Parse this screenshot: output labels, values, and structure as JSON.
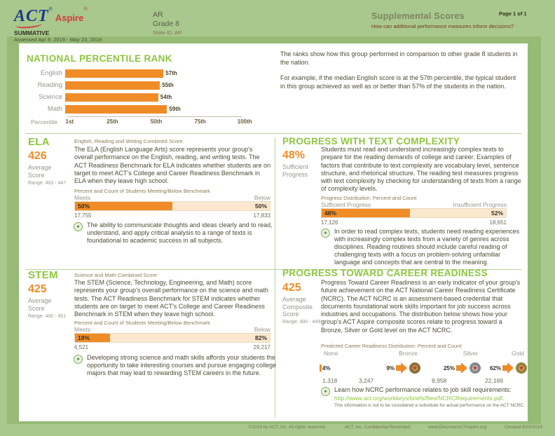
{
  "colors": {
    "background_green": "#a9c88d",
    "heading_green": "#8dc63f",
    "accent_orange": "#f08c28",
    "bar_below_fill": "#fce8ce",
    "link_green": "#8dc63f",
    "act_blue": "#1b3b8c",
    "aspire_red": "#d5373c",
    "medal_bronze": "#8c6f39",
    "medal_silver": "#84898e",
    "medal_gold": "#97823b"
  },
  "icons": {
    "insight": "✦",
    "medal_star": "★"
  },
  "header": {
    "logo_act": "ACT",
    "logo_act_mark": "®",
    "logo_aspire": "Aspire",
    "logo_aspire_mark": "®",
    "summative": "SUMMATIVE",
    "assessed": "Assessed Apr 8, 2019 - May 23, 2019",
    "region": "AR",
    "grade": "Grade 8",
    "state_id": "State ID: AR",
    "title": "Supplemental Scores",
    "subtitle": "How can additional performance measures inform decisions?",
    "page": "Page 1 of 1"
  },
  "national_percentile": {
    "title": "NATIONAL PERCENTILE RANK",
    "axis_label": "Percentile",
    "chart_data": {
      "type": "bar",
      "orientation": "horizontal",
      "title": "National Percentile Rank",
      "categories": [
        "English",
        "Reading",
        "Science",
        "Math"
      ],
      "values": [
        57,
        55,
        54,
        59
      ],
      "value_labels": [
        "57th",
        "55th",
        "54th",
        "59th"
      ],
      "x_ticks": [
        "1st",
        "25th",
        "50th",
        "75th",
        "100th"
      ],
      "x_tick_values": [
        1,
        25,
        50,
        75,
        100
      ],
      "xlim": [
        1,
        100
      ],
      "bar_color": "#f08c28",
      "grid": false,
      "legend": false
    },
    "para1": "The ranks show how this group performed in comparison to other grade 8 students in the nation.",
    "para2": "For example, if the median English score is at the 57th percentile, the typical student in this group achieved as well as or better than 57% of the students in the nation."
  },
  "ela": {
    "title": "ELA",
    "score": "426",
    "score_label": "Average Score",
    "range": "Range: 403 - 447",
    "combined_label": "English, Reading and Writing Combined Score",
    "body": "The ELA (English Language Arts) score represents your group's overall performance on the English, reading, and writing tests. The ACT Readiness Benchmark for ELA indicates whether students are on target to meet ACT's College and Career Readiness Benchmark in ELA when they leave high school.",
    "bar_title": "Percent and Count of Students Meeting/Below Benchmark",
    "left_label": "Meets",
    "right_label": "Below",
    "left_pct": 50,
    "right_pct": 50,
    "left_pct_label": "50%",
    "right_pct_label": "50%",
    "left_count": "17,755",
    "right_count": "17,833",
    "insight": "The ability to communicate thoughts and ideas clearly and to read, understand, and apply critical analysis to a range of texts is foundational to academic success in all subjects."
  },
  "text_complexity": {
    "title": "PROGRESS WITH TEXT COMPLEXITY",
    "score": "48%",
    "score_label": "Sufficient Progress",
    "body": "Students must read and understand increasingly complex texts to prepare for the reading demands of college and career. Examples of factors that contribute to text complexity are vocabulary level, sentence structure, and rhetorical structure. The reading test measures progress with text complexity by checking for understanding of texts from a range of complexity levels.",
    "bar_title": "Progress Distribution: Percent and Count",
    "left_label": "Sufficient Progress",
    "right_label": "Insufficient Progress",
    "left_pct": 48,
    "right_pct": 52,
    "left_pct_label": "48%",
    "right_pct_label": "52%",
    "left_count": "17,126",
    "right_count": "18,651",
    "insight": "In order to read complex texts, students need reading experiences with increasingly complex texts from a variety of genres across disciplines. Reading routines should include careful reading of challenging texts with a focus on problem-solving unfamiliar language and concepts that are central to the meaning."
  },
  "stem": {
    "title": "STEM",
    "score": "425",
    "score_label": "Average Score",
    "range": "Range: 400 - 451",
    "combined_label": "Science and Math Combined Score",
    "body": "The STEM (Science, Technology, Engineering, and Math) score represents your group's overall performance on the science and math tests. The ACT Readiness Benchmark for STEM indicates whether students are on target to meet ACT's College and Career Readiness Benchmark in STEM when they leave high school.",
    "bar_title": "Percent and Count of Students Meeting/Below Benchmark",
    "left_label": "Meets",
    "right_label": "Below",
    "left_pct": 18,
    "right_pct": 82,
    "left_pct_label": "18%",
    "right_pct_label": "82%",
    "left_count": "6,521",
    "right_count": "29,217",
    "insight": "Developing strong science and math skills affords your students the opportunity to take interesting courses and pursue engaging college majors that may lead to rewarding STEM careers in the future."
  },
  "career": {
    "title": "PROGRESS TOWARD CAREER READINESS",
    "score": "425",
    "score_label": "Average Composite Score",
    "range": "Range: 400 - 449",
    "body": "Progress Toward Career Readiness is an early indicator of your group's future achievement on the ACT National Career Readiness Certificate (NCRC). The ACT NCRC is an assessment-based credential that documents foundational work skills important for job success across industries and occupations. The distribution below shows how your group's ACT Aspire composite scores relate to progress toward a Bronze, Silver or Gold level on the ACT NCRC.",
    "dist_title": "Predicted Career Readiness Distribution: Percent and Count",
    "levels": [
      {
        "label": "None",
        "pct": "4%",
        "count": "1,318",
        "medal": "none"
      },
      {
        "label": "Bronze",
        "pct": "9%",
        "count": "3,247",
        "medal": "bronze"
      },
      {
        "label": "Silver",
        "pct": "25%",
        "count": "8,958",
        "medal": "silver"
      },
      {
        "label": "Gold",
        "pct": "62%",
        "count": "22,189",
        "medal": "gold"
      }
    ],
    "insight_main": "Learn how NCRC performance relates to job skill requirements:",
    "insight_link": "http://www.act.org/workkeys/briefs/files/NCRCRequirements.pdf.",
    "insight_note": "This information is not to be considered a substitute for actual performance on the ACT NCRC."
  },
  "footer": {
    "copyright": "©2019 by ACT, Inc. All rights reserved.",
    "confidential": "ACT, Inc. Confidential Restricted",
    "website": "www.DiscoverACTAspire.org",
    "created": "Created 8/29/2019"
  }
}
